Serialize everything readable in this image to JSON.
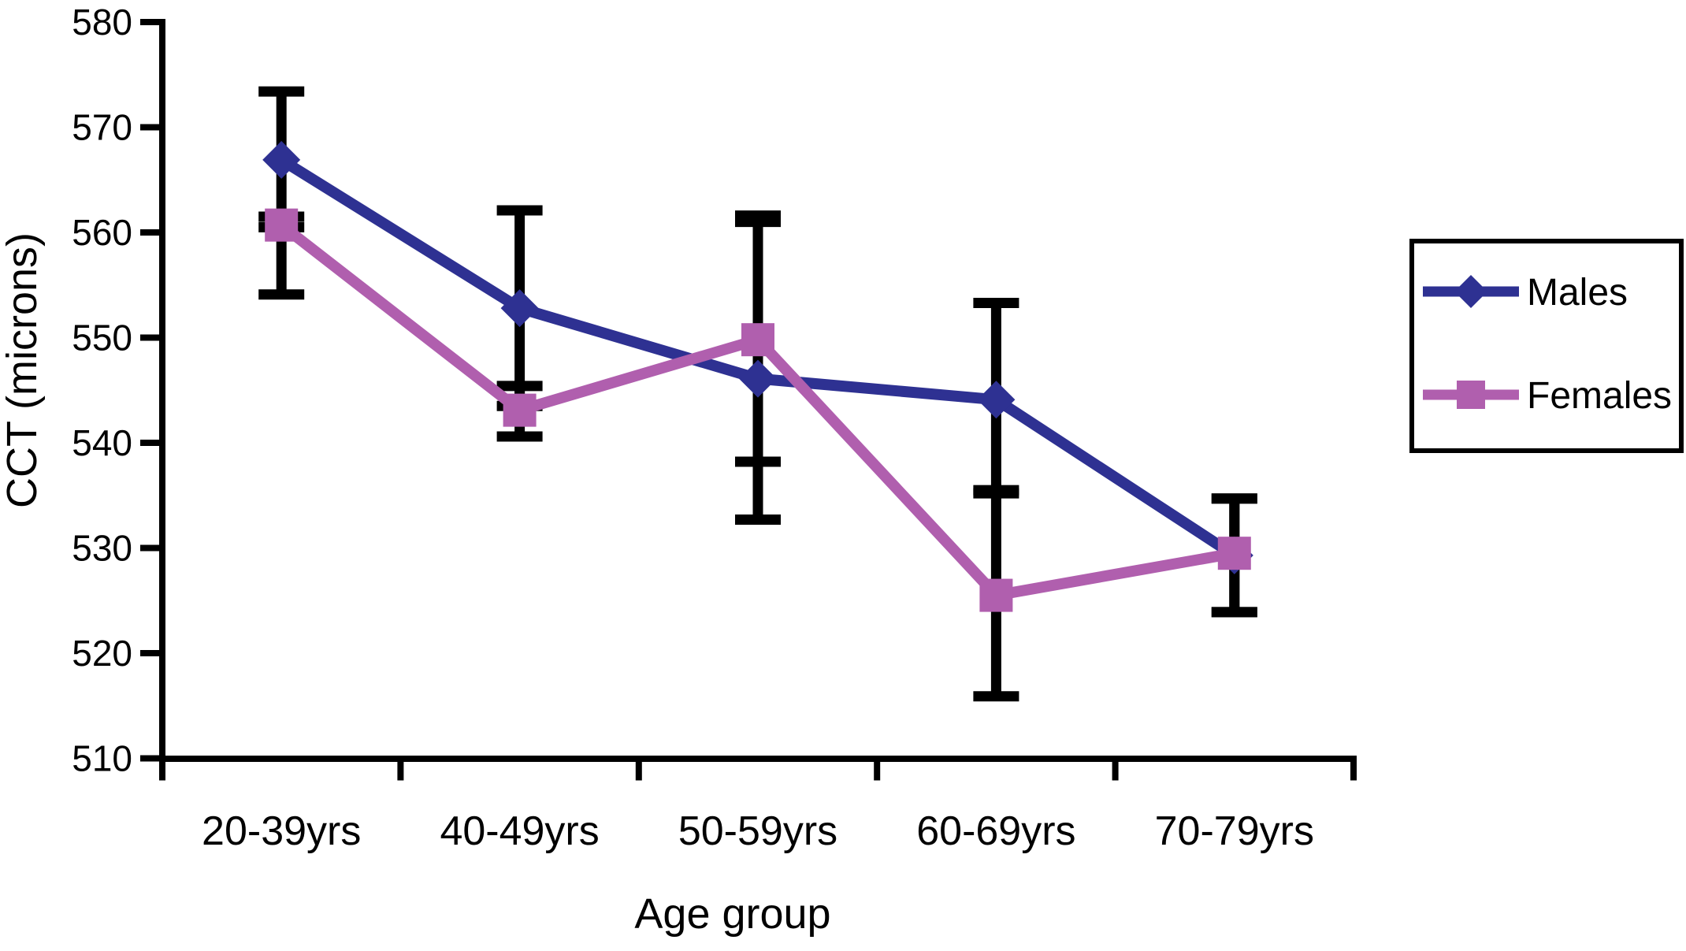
{
  "chart_data": {
    "type": "line",
    "title": "",
    "xlabel": "Age group",
    "ylabel": "CCT (microns)",
    "categories": [
      "20-39yrs",
      "40-49yrs",
      "50-59yrs",
      "60-69yrs",
      "70-79yrs"
    ],
    "ylim": [
      510,
      580
    ],
    "yticks": [
      510,
      520,
      530,
      540,
      550,
      560,
      570,
      580
    ],
    "grid": false,
    "legend_position": "right",
    "background_color": "#FFFFFF",
    "axis_color": "#000000",
    "error_bar_color": "#000000",
    "series": [
      {
        "name": "Males",
        "color": "#2E3192",
        "marker": "diamond",
        "values": [
          566.9,
          552.8,
          546.1,
          544.1,
          529.3
        ],
        "error_bar_top": [
          573.4,
          562.1,
          561.0,
          553.3,
          534.7
        ],
        "error_bar_bottom": [
          560.5,
          543.5,
          532.7,
          535.5,
          523.9
        ]
      },
      {
        "name": "Females",
        "color": "#B05FAE",
        "marker": "square",
        "values": [
          560.7,
          543.1,
          549.8,
          525.5,
          529.5
        ],
        "error_bar_top": [
          561.5,
          545.4,
          561.6,
          535.2,
          534.7
        ],
        "error_bar_bottom": [
          554.1,
          540.6,
          538.2,
          515.9,
          523.9
        ]
      }
    ]
  }
}
